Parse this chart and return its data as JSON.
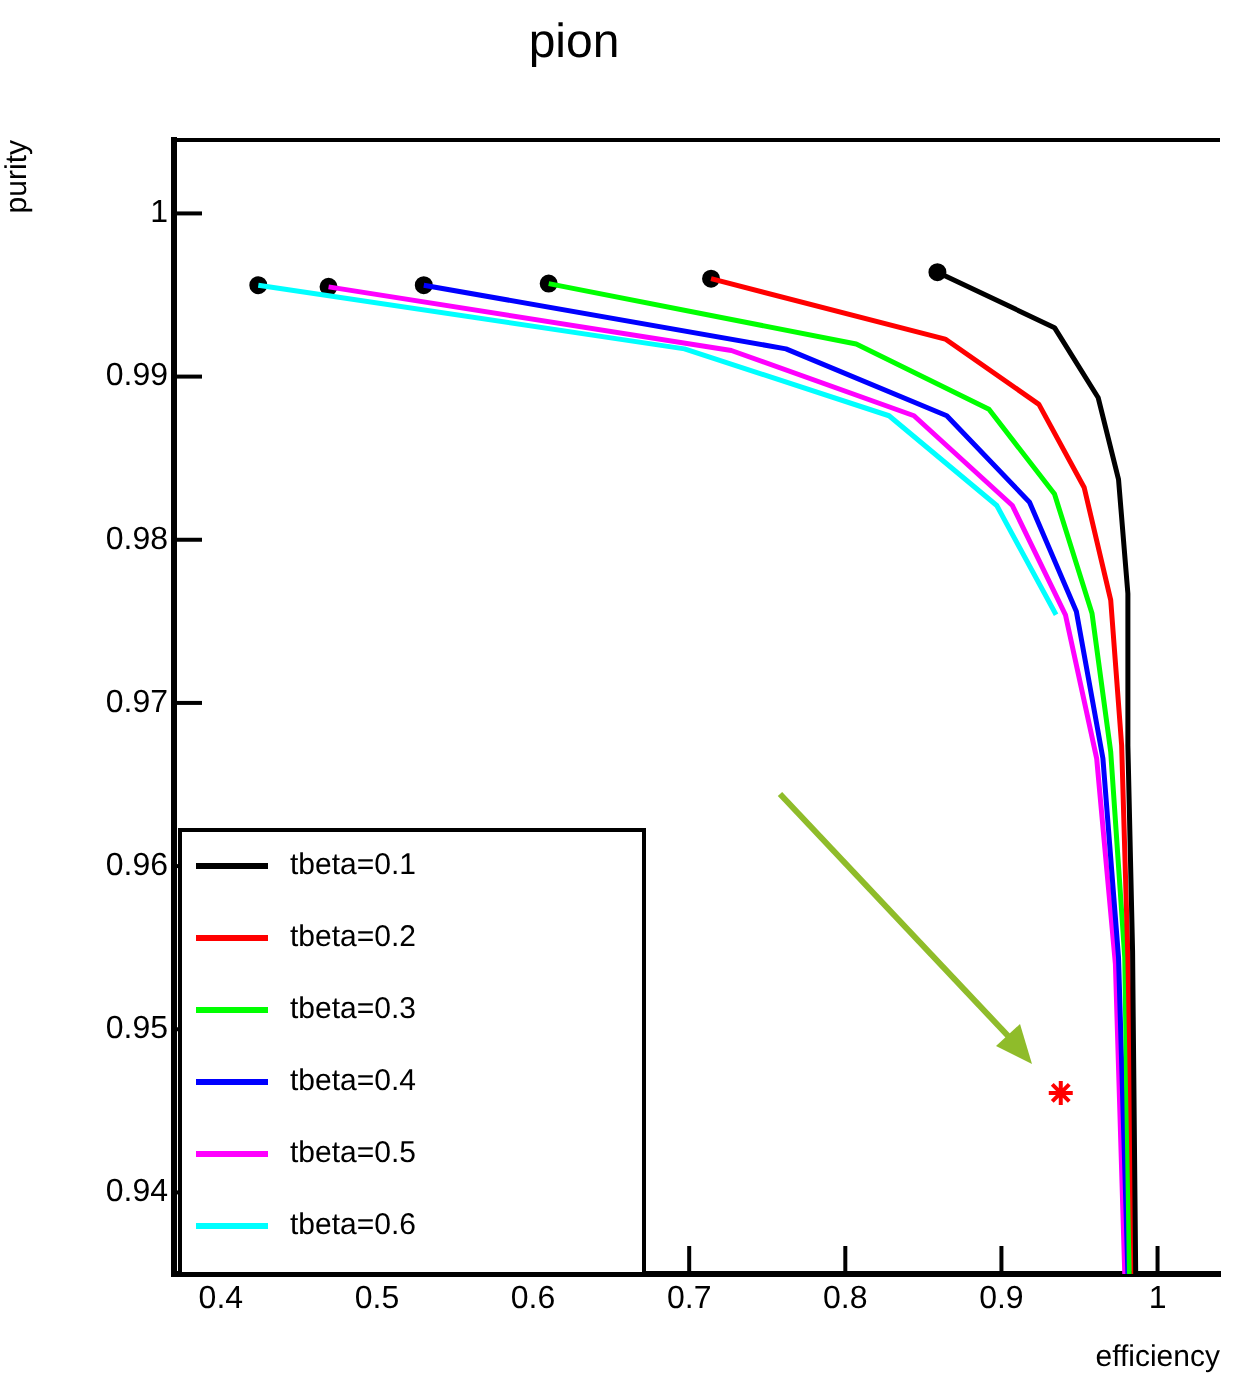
{
  "chart_data": {
    "type": "line",
    "title": "pion",
    "xlabel": "efficiency",
    "ylabel": "purity",
    "xlim": [
      0.37,
      1.04
    ],
    "xticks": [
      0.4,
      0.5,
      0.6,
      0.7,
      0.8,
      0.9,
      1
    ],
    "ylim": [
      0.935,
      1.0045
    ],
    "yticks": [
      0.94,
      0.95,
      0.96,
      0.97,
      0.98,
      0.99,
      1
    ],
    "grid": false,
    "legend": "bottom left",
    "marker": "none",
    "line_style": "solid",
    "series": [
      {
        "name": "tbeta=0.1",
        "color": "#000000",
        "x": [
          0.859,
          0.934,
          0.962,
          0.975,
          0.981,
          0.981,
          0.984,
          0.986
        ],
        "values": [
          0.9964,
          0.993,
          0.9887,
          0.9837,
          0.9767,
          0.9674,
          0.9548,
          0.935
        ]
      },
      {
        "name": "tbeta=0.2",
        "color": "#ff0000",
        "x": [
          0.714,
          0.864,
          0.924,
          0.953,
          0.97,
          0.977,
          0.981,
          0.985
        ],
        "values": [
          0.996,
          0.9923,
          0.9883,
          0.9832,
          0.9763,
          0.9674,
          0.9544,
          0.935
        ]
      },
      {
        "name": "tbeta=0.3",
        "color": "#00ff00",
        "x": [
          0.61,
          0.807,
          0.892,
          0.934,
          0.958,
          0.97,
          0.979,
          0.982
        ],
        "values": [
          0.9957,
          0.992,
          0.988,
          0.9828,
          0.9755,
          0.967,
          0.9544,
          0.935
        ]
      },
      {
        "name": "tbeta=0.4",
        "color": "#0000ff",
        "x": [
          0.53,
          0.762,
          0.865,
          0.918,
          0.948,
          0.965,
          0.975,
          0.981
        ],
        "values": [
          0.9956,
          0.9917,
          0.9876,
          0.9823,
          0.9756,
          0.9666,
          0.9544,
          0.935
        ]
      },
      {
        "name": "tbeta=0.5",
        "color": "#ff00ff",
        "x": [
          0.469,
          0.727,
          0.844,
          0.907,
          0.941,
          0.961,
          0.973,
          0.979
        ],
        "values": [
          0.9955,
          0.9916,
          0.9876,
          0.9821,
          0.9754,
          0.9666,
          0.954,
          0.935
        ]
      },
      {
        "name": "tbeta=0.6",
        "color": "#00ffff",
        "x": [
          0.424,
          0.697,
          0.828,
          0.897,
          0.935
        ],
        "values": [
          0.9956,
          0.9917,
          0.9876,
          0.9821,
          0.9754
        ]
      },
      {
        "type": "scatter",
        "marker": "circle",
        "color": "#000000",
        "x": [
          0.859,
          0.714,
          0.61,
          0.53,
          0.469,
          0.424
        ],
        "values": [
          0.9964,
          0.996,
          0.9957,
          0.9956,
          0.9955,
          0.9956
        ]
      },
      {
        "type": "scatter",
        "marker": "cross",
        "color": "#ff0000",
        "x": [
          0.938
        ],
        "values": [
          0.9461
        ]
      }
    ]
  }
}
